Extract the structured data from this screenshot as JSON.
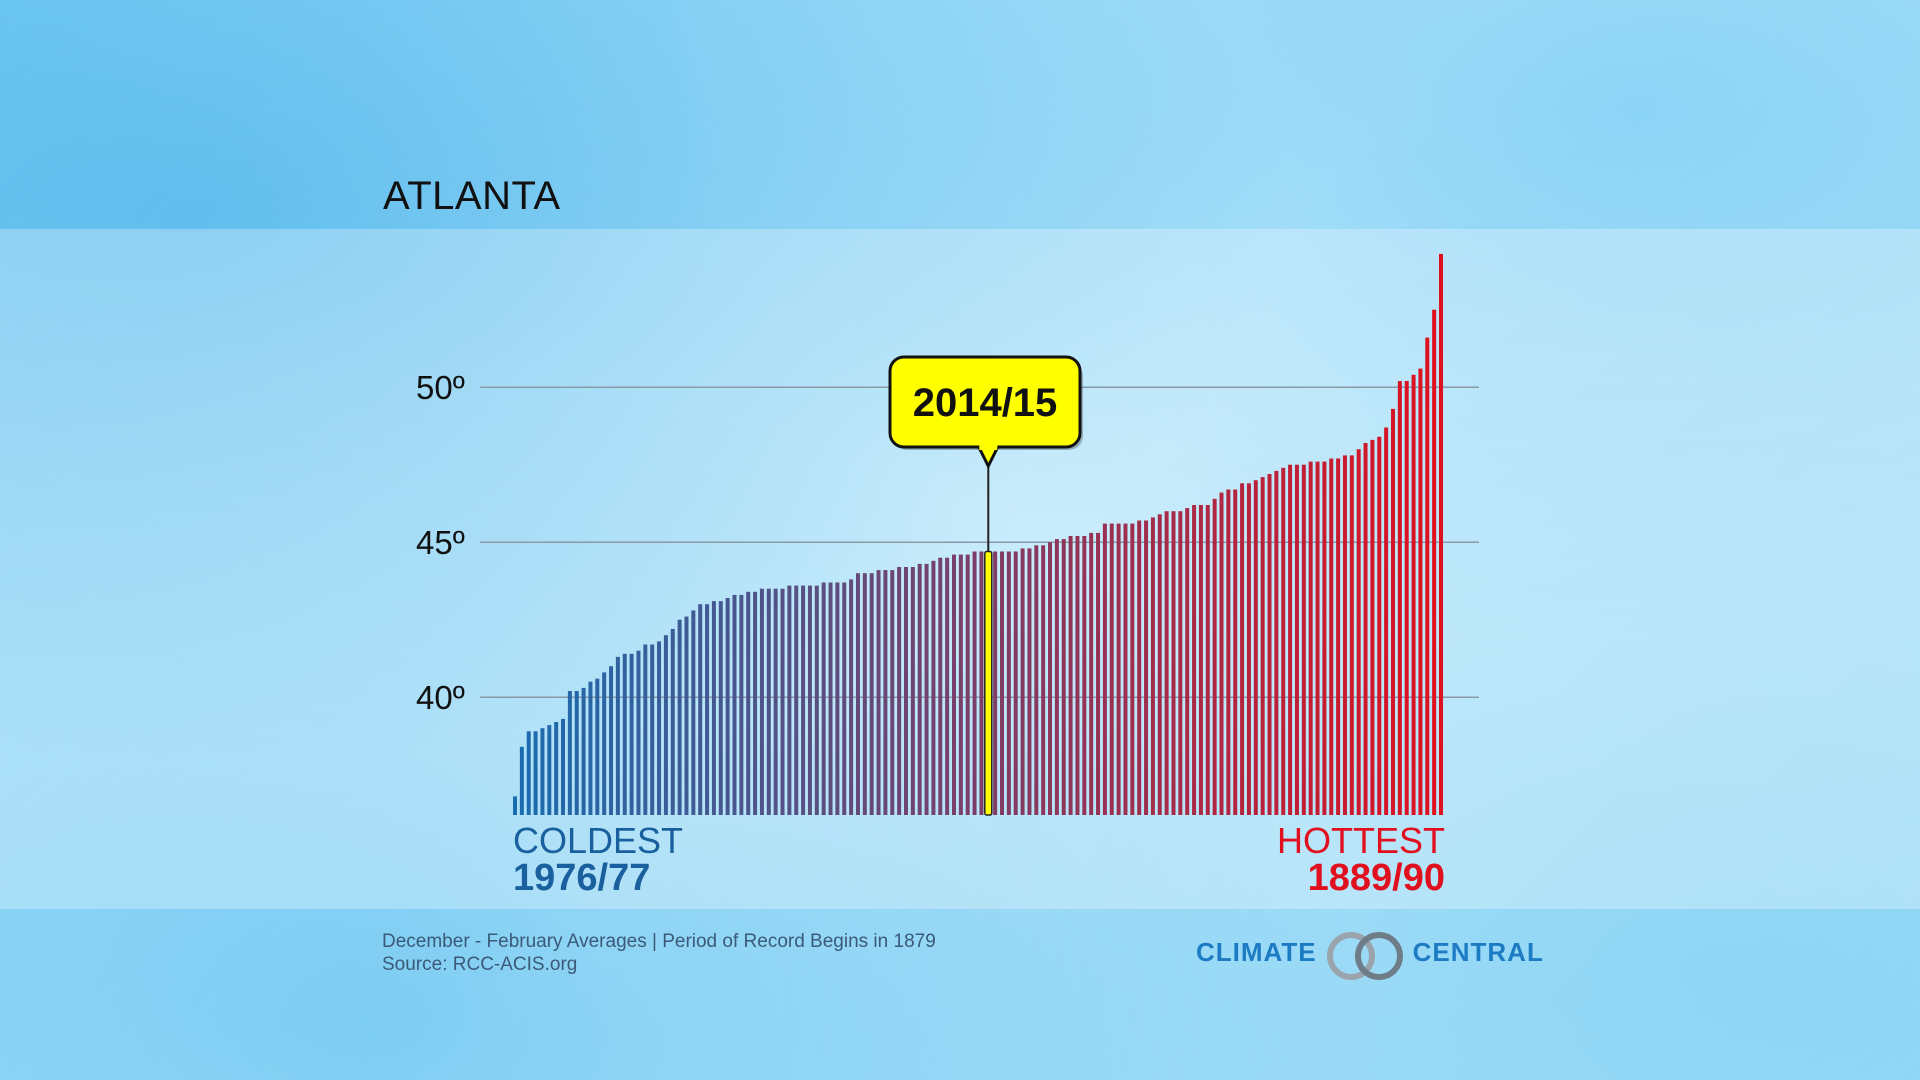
{
  "title": "ATLANTA",
  "chart_data": {
    "type": "bar",
    "title": "ATLANTA",
    "ylim": [
      36.2,
      55
    ],
    "yticks": [
      {
        "value": 40,
        "label": "40º"
      },
      {
        "value": 45,
        "label": "45º"
      },
      {
        "value": 50,
        "label": "50º"
      }
    ],
    "grid": true,
    "sorted": "ascending",
    "values": [
      36.8,
      38.4,
      38.9,
      38.9,
      39.0,
      39.1,
      39.2,
      39.3,
      40.2,
      40.2,
      40.3,
      40.5,
      40.6,
      40.8,
      41.0,
      41.3,
      41.4,
      41.4,
      41.5,
      41.7,
      41.7,
      41.8,
      42.0,
      42.2,
      42.5,
      42.6,
      42.8,
      43.0,
      43.0,
      43.1,
      43.1,
      43.2,
      43.3,
      43.3,
      43.4,
      43.4,
      43.5,
      43.5,
      43.5,
      43.5,
      43.6,
      43.6,
      43.6,
      43.6,
      43.6,
      43.7,
      43.7,
      43.7,
      43.7,
      43.8,
      44.0,
      44.0,
      44.0,
      44.1,
      44.1,
      44.1,
      44.2,
      44.2,
      44.2,
      44.3,
      44.3,
      44.4,
      44.5,
      44.5,
      44.6,
      44.6,
      44.6,
      44.7,
      44.7,
      44.7,
      44.7,
      44.7,
      44.7,
      44.7,
      44.8,
      44.8,
      44.9,
      44.9,
      45.0,
      45.1,
      45.1,
      45.2,
      45.2,
      45.2,
      45.3,
      45.3,
      45.6,
      45.6,
      45.6,
      45.6,
      45.6,
      45.7,
      45.7,
      45.8,
      45.9,
      46.0,
      46.0,
      46.0,
      46.1,
      46.2,
      46.2,
      46.2,
      46.4,
      46.6,
      46.7,
      46.7,
      46.9,
      46.9,
      47.0,
      47.1,
      47.2,
      47.3,
      47.4,
      47.5,
      47.5,
      47.5,
      47.6,
      47.6,
      47.6,
      47.7,
      47.7,
      47.8,
      47.8,
      48.0,
      48.2,
      48.3,
      48.4,
      48.7,
      49.3,
      50.2,
      50.2,
      50.4,
      50.6,
      51.6,
      52.5,
      54.3
    ],
    "highlight": {
      "index": 69,
      "label": "2014/15",
      "color": "#ffff00"
    },
    "color_cold": "#1a6cb0",
    "color_hot": "#e0101e",
    "coldest": {
      "label": "COLDEST",
      "year": "1976/77"
    },
    "hottest": {
      "label": "HOTTEST",
      "year": "1889/90"
    }
  },
  "footer": {
    "note": "December - February Averages | Period of Record Begins in 1879",
    "source": "Source: RCC-ACIS.org"
  },
  "logo": {
    "left": "CLIMATE",
    "right": "CENTRAL"
  }
}
